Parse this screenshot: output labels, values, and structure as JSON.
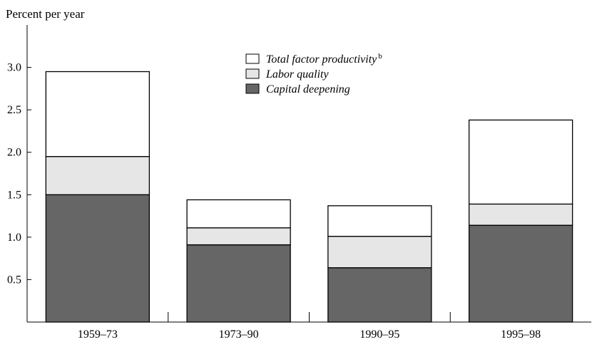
{
  "chart_data": {
    "type": "bar",
    "stacked": true,
    "ylabel": "Percent per year",
    "ylim": [
      0,
      3.5
    ],
    "yticks": [
      0.5,
      1.0,
      1.5,
      2.0,
      2.5,
      3.0
    ],
    "ytick_labels": [
      "0.5",
      "1.0",
      "1.5",
      "2.0",
      "2.5",
      "3.0"
    ],
    "categories": [
      "1959–73",
      "1973–90",
      "1990–95",
      "1995–98"
    ],
    "series": [
      {
        "name": "Capital deepening",
        "values": [
          1.5,
          0.91,
          0.64,
          1.14
        ],
        "color": "#666666"
      },
      {
        "name": "Labor quality",
        "values": [
          0.45,
          0.2,
          0.37,
          0.25
        ],
        "color": "#e6e6e6"
      },
      {
        "name": "Total factor productivity",
        "name_superscript": "b",
        "values": [
          1.0,
          0.33,
          0.36,
          0.99
        ],
        "color": "#ffffff"
      }
    ],
    "legend_order": [
      "Total factor productivity",
      "Labor quality",
      "Capital deepening"
    ],
    "legend_position": "top-center",
    "grid": false
  }
}
